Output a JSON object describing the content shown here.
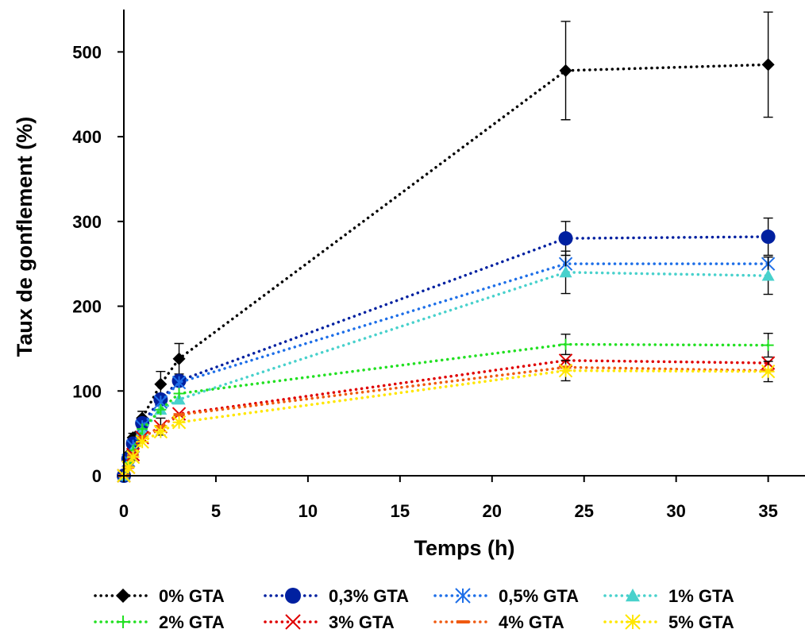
{
  "chart_data": {
    "type": "line",
    "title": "",
    "xlabel": "Temps (h)",
    "ylabel": "Taux de gonflement (%)",
    "xlim": [
      0,
      37
    ],
    "ylim": [
      0,
      550
    ],
    "x_ticks": [
      0,
      5,
      10,
      15,
      20,
      25,
      30,
      35
    ],
    "y_ticks": [
      0,
      100,
      200,
      300,
      400,
      500
    ],
    "grid": false,
    "legend_position": "bottom",
    "x": [
      0,
      0.25,
      0.5,
      1,
      2,
      3,
      24,
      35
    ],
    "series": [
      {
        "name": "0% GTA",
        "color": "#000000",
        "marker": "diamond",
        "values": [
          0,
          25,
          45,
          68,
          108,
          138,
          478,
          485
        ],
        "errors": [
          0,
          0,
          5,
          8,
          15,
          18,
          58,
          62
        ]
      },
      {
        "name": "0,3% GTA",
        "color": "#0020A0",
        "marker": "circle",
        "values": [
          0,
          20,
          38,
          62,
          90,
          112,
          280,
          282
        ],
        "errors": [
          0,
          0,
          0,
          0,
          0,
          0,
          20,
          22
        ]
      },
      {
        "name": "0,5% GTA",
        "color": "#1E6FE8",
        "marker": "asterisk",
        "values": [
          0,
          18,
          35,
          58,
          87,
          110,
          250,
          250
        ],
        "errors": [
          0,
          0,
          0,
          0,
          0,
          0,
          0,
          0
        ]
      },
      {
        "name": "1% GTA",
        "color": "#48D1CC",
        "marker": "triangle",
        "values": [
          0,
          15,
          30,
          52,
          78,
          90,
          240,
          236
        ],
        "errors": [
          0,
          0,
          0,
          0,
          0,
          0,
          25,
          22
        ]
      },
      {
        "name": "2% GTA",
        "color": "#22E022",
        "marker": "plus",
        "values": [
          0,
          15,
          30,
          55,
          78,
          97,
          155,
          154
        ],
        "errors": [
          0,
          0,
          0,
          0,
          0,
          0,
          12,
          14
        ]
      },
      {
        "name": "3% GTA",
        "color": "#E00000",
        "marker": "x",
        "values": [
          0,
          10,
          25,
          45,
          58,
          73,
          136,
          133
        ],
        "errors": [
          0,
          0,
          0,
          0,
          10,
          0,
          0,
          0
        ]
      },
      {
        "name": "4% GTA",
        "color": "#F05A10",
        "marker": "dash",
        "values": [
          0,
          10,
          25,
          45,
          58,
          72,
          128,
          124
        ],
        "errors": [
          0,
          0,
          0,
          0,
          0,
          0,
          0,
          0
        ]
      },
      {
        "name": "5% GTA",
        "color": "#FFE600",
        "marker": "star",
        "values": [
          0,
          10,
          22,
          40,
          52,
          63,
          124,
          123
        ],
        "errors": [
          0,
          0,
          0,
          0,
          0,
          0,
          12,
          12
        ]
      }
    ]
  }
}
